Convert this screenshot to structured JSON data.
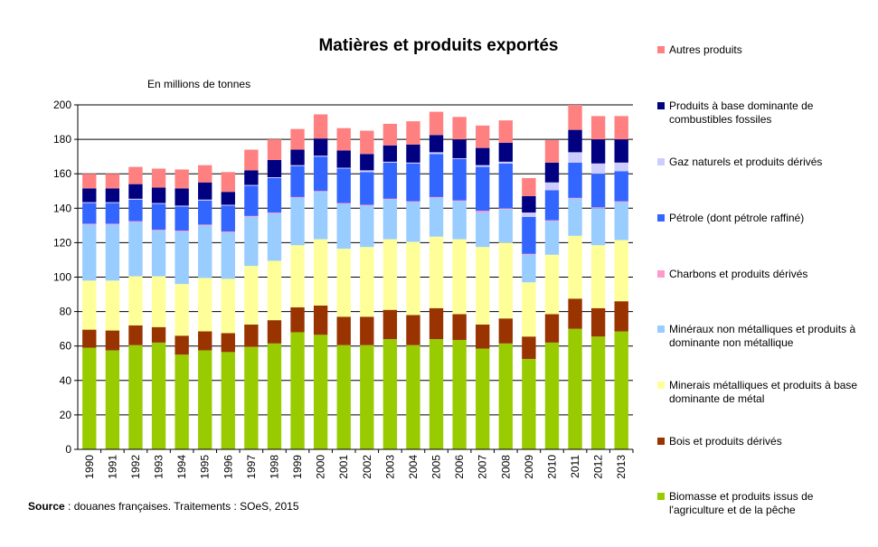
{
  "chart_data": {
    "type": "bar",
    "stacked": true,
    "title": "Matières et produits exportés",
    "ylabel": "En millions de tonnes",
    "xlabel": "",
    "ylim": [
      0,
      200
    ],
    "yticks": [
      0,
      20,
      40,
      60,
      80,
      100,
      120,
      140,
      160,
      180,
      200
    ],
    "grid": true,
    "legend": "right",
    "categories": [
      "1990",
      "1991",
      "1992",
      "1993",
      "1994",
      "1995",
      "1996",
      "1997",
      "1998",
      "1999",
      "2000",
      "2001",
      "2002",
      "2003",
      "2004",
      "2005",
      "2006",
      "2007",
      "2008",
      "2009",
      "2010",
      "2011",
      "2012",
      "2013"
    ],
    "series": [
      {
        "name": "Biomasse et produits issus de l'agriculture et de la pêche",
        "color": "#99cc00",
        "values": [
          59,
          57.5,
          60.5,
          62,
          55,
          57.5,
          56.5,
          59.5,
          61.5,
          68,
          66.5,
          60.5,
          60.5,
          64,
          60.5,
          64,
          63.5,
          58.5,
          61.5,
          52.5,
          62,
          70,
          65.5,
          68.5
        ]
      },
      {
        "name": "Bois et produits dérivés",
        "color": "#993300",
        "values": [
          10.5,
          11.5,
          11.5,
          9,
          11,
          11,
          11,
          13,
          13.5,
          14.5,
          17,
          16.5,
          16.5,
          17,
          17.5,
          18,
          15,
          14,
          14.5,
          13,
          16.5,
          17.5,
          16.5,
          17.5
        ]
      },
      {
        "name": "Minerais métalliques et produits à base dominante de métal",
        "color": "#ffff99",
        "values": [
          28.5,
          29,
          28.5,
          29.5,
          30,
          31,
          31.5,
          34,
          34.5,
          36,
          38.5,
          39.5,
          40.5,
          41,
          42.5,
          41.5,
          43.5,
          45,
          44,
          31.5,
          34.5,
          36.5,
          36.5,
          35.5
        ]
      },
      {
        "name": "Minéraux non métalliques et produits à dominante non métallique",
        "color": "#99ccff",
        "values": [
          32.5,
          32.5,
          31.5,
          26.5,
          30.5,
          30.5,
          27,
          28.5,
          27.5,
          27.5,
          27.5,
          26,
          24,
          23,
          23,
          22.5,
          22,
          20,
          19.5,
          16,
          19.5,
          21.5,
          21.5,
          22
        ]
      },
      {
        "name": "Charbons et produits dérivés",
        "color": "#ff99cc",
        "values": [
          0.5,
          0.5,
          0.5,
          0.5,
          0.5,
          0.5,
          0.5,
          0.5,
          0.5,
          0.5,
          0.5,
          0.5,
          0.5,
          0.5,
          0.5,
          0.5,
          0.5,
          1,
          0.5,
          0.5,
          0.5,
          0.5,
          0.5,
          0.5
        ]
      },
      {
        "name": "Pétrole (dont pétrole raffiné)",
        "color": "#3366ff",
        "values": [
          12,
          12,
          12.5,
          15,
          14,
          14,
          15,
          17.5,
          20,
          18,
          20,
          20,
          19,
          21,
          22,
          25,
          24,
          25.5,
          26,
          21.5,
          17.5,
          20.5,
          19.5,
          17.5
        ]
      },
      {
        "name": "Gaz naturels et produits dérivés",
        "color": "#ccccff",
        "values": [
          0.5,
          0.5,
          0.5,
          0.5,
          0.5,
          0.5,
          0.5,
          0.5,
          0.5,
          0.5,
          0.5,
          0.5,
          1,
          0.5,
          0.5,
          1,
          0.5,
          1,
          1,
          2.5,
          4.5,
          6,
          6,
          5
        ]
      },
      {
        "name": "Produits à base dominante de combustibles fossiles",
        "color": "#000080",
        "values": [
          8,
          8,
          8.5,
          9,
          10,
          10,
          7.5,
          8.5,
          10,
          9,
          10,
          10,
          9.5,
          9.5,
          10.5,
          10,
          11,
          10,
          11,
          9.5,
          11.5,
          13,
          14,
          13.5
        ]
      },
      {
        "name": "Autres produits",
        "color": "#ff8080",
        "values": [
          8.5,
          8.5,
          10,
          11,
          11,
          10,
          11.5,
          12,
          12,
          12,
          14,
          13,
          13.5,
          12.5,
          13.5,
          13.5,
          13,
          13,
          13,
          10.5,
          13,
          14.5,
          13.5,
          13.5
        ]
      }
    ]
  },
  "legend_title_order": [
    8,
    7,
    6,
    5,
    4,
    3,
    2,
    1,
    0
  ],
  "source": {
    "label": "Source",
    "text": " : douanes françaises. Traitements : SOeS, 2015"
  }
}
